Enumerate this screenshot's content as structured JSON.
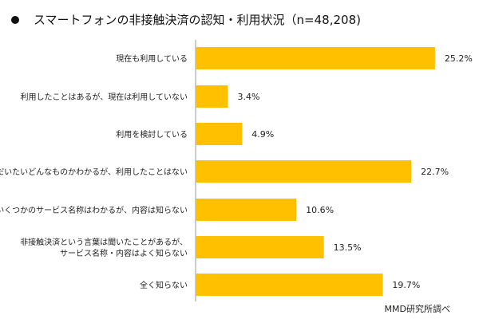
{
  "title": "スマートフォンの非接触決済の認知・利用状況（n=48,208)",
  "source": "MMD研究所調べ",
  "colors": {
    "bar": "#FFC000",
    "axis": "#999999"
  },
  "chart_data": {
    "type": "bar",
    "orientation": "horizontal",
    "categories": [
      [
        "現在も利用している"
      ],
      [
        "利用したことはあるが、現在は利用していない"
      ],
      [
        "利用を検討している"
      ],
      [
        "だいたいどんなものかわかるが、利用したことはない"
      ],
      [
        "いくつかのサービス名称はわかるが、内容は知らない"
      ],
      [
        "非接触決済という言葉は聞いたことがあるが、",
        "サービス名称・内容はよく知らない"
      ],
      [
        "全く知らない"
      ]
    ],
    "values": [
      25.2,
      3.4,
      4.9,
      22.7,
      10.6,
      13.5,
      19.7
    ],
    "value_labels": [
      "25.2%",
      "3.4%",
      "4.9%",
      "22.7%",
      "10.6%",
      "13.5%",
      "19.7%"
    ],
    "unit": "%",
    "grid": false,
    "legend": "none"
  }
}
